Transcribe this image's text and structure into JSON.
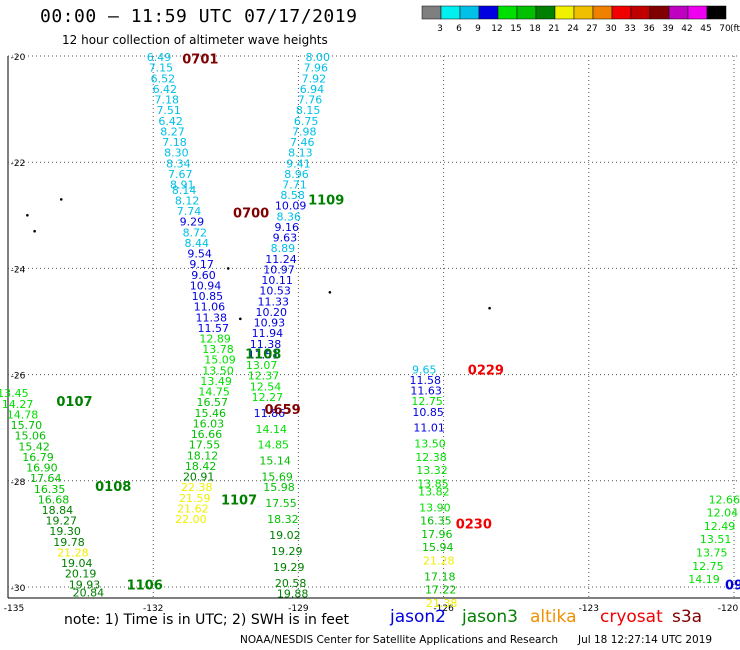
{
  "header": {
    "title": "00:00 – 11:59 UTC 07/17/2019",
    "subtitle": "12 hour collection of altimeter wave heights"
  },
  "legend": {
    "unit": "(ft)",
    "bins": [
      {
        "label": "3",
        "color": "#7f7f7f"
      },
      {
        "label": "6",
        "color": "#00f0f0"
      },
      {
        "label": "9",
        "color": "#00c0e8"
      },
      {
        "label": "12",
        "color": "#0000e0"
      },
      {
        "label": "15",
        "color": "#00e000"
      },
      {
        "label": "18",
        "color": "#00c000"
      },
      {
        "label": "21",
        "color": "#008000"
      },
      {
        "label": "24",
        "color": "#f0f000"
      },
      {
        "label": "27",
        "color": "#f0c000"
      },
      {
        "label": "30",
        "color": "#f08000"
      },
      {
        "label": "33",
        "color": "#f00000"
      },
      {
        "label": "36",
        "color": "#c00000"
      },
      {
        "label": "39",
        "color": "#800000"
      },
      {
        "label": "42",
        "color": "#c000c0"
      },
      {
        "label": "45",
        "color": "#f000f0"
      },
      {
        "label": "70",
        "color": "#000000"
      }
    ]
  },
  "axes": {
    "lat_labels": [
      "-20",
      "-22",
      "-24",
      "-26",
      "-28",
      "-30"
    ],
    "lon_labels": [
      "-135",
      "-132",
      "-129",
      "-126",
      "-123",
      "-120"
    ]
  },
  "passes": [
    {
      "time": "0701",
      "color": "#800000",
      "lon": -131.4,
      "lat": -20.05
    },
    {
      "time": "0700",
      "color": "#800000",
      "lon": -130.35,
      "lat": -22.95
    },
    {
      "time": "1109",
      "color": "#008000",
      "lon": -128.8,
      "lat": -22.7
    },
    {
      "time": "1108",
      "color": "#008000",
      "lon": -130.1,
      "lat": -25.6
    },
    {
      "time": "0659",
      "color": "#800000",
      "lon": -129.7,
      "lat": -26.65
    },
    {
      "time": "0107",
      "color": "#008000",
      "lon": -134.0,
      "lat": -26.5
    },
    {
      "time": "0108",
      "color": "#008000",
      "lon": -133.2,
      "lat": -28.1
    },
    {
      "time": "1107",
      "color": "#008000",
      "lon": -130.6,
      "lat": -28.35
    },
    {
      "time": "1106",
      "color": "#008000",
      "lon": -132.55,
      "lat": -29.95
    },
    {
      "time": "0229",
      "color": "#f00000",
      "lon": -125.5,
      "lat": -25.9
    },
    {
      "time": "0230",
      "color": "#f00000",
      "lon": -125.75,
      "lat": -28.8
    },
    {
      "time": "09",
      "color": "#0000e0",
      "lon": -120.15,
      "lat": -29.95
    }
  ],
  "tracks": [
    {
      "name": "track-a",
      "points": [
        [
          "6.49",
          "#00c0e8",
          -131.88,
          -20.02
        ],
        [
          "7.15",
          "#00c0e8",
          -131.84,
          -20.22
        ],
        [
          "6.52",
          "#00c0e8",
          -131.8,
          -20.42
        ],
        [
          "6.42",
          "#00c0e8",
          -131.76,
          -20.62
        ],
        [
          "7.18",
          "#00c0e8",
          -131.72,
          -20.82
        ],
        [
          "7.51",
          "#00c0e8",
          -131.68,
          -21.02
        ],
        [
          "6.42",
          "#00c0e8",
          -131.64,
          -21.22
        ],
        [
          "8.27",
          "#00c0e8",
          -131.6,
          -21.42
        ],
        [
          "7.18",
          "#00c0e8",
          -131.56,
          -21.62
        ],
        [
          "8.30",
          "#00c0e8",
          -131.52,
          -21.82
        ],
        [
          "8.34",
          "#00c0e8",
          -131.48,
          -22.02
        ],
        [
          "7.67",
          "#00c0e8",
          -131.44,
          -22.22
        ],
        [
          "8.91",
          "#00c0e8",
          -131.4,
          -22.42
        ],
        [
          "8.14",
          "#00c0e8",
          -131.36,
          -22.52
        ],
        [
          "8.12",
          "#00c0e8",
          -131.3,
          -22.72
        ],
        [
          "7.74",
          "#00c0e8",
          -131.26,
          -22.92
        ],
        [
          "9.29",
          "#0000e0",
          -131.2,
          -23.12
        ],
        [
          "8.72",
          "#00c0e8",
          -131.14,
          -23.32
        ],
        [
          "8.44",
          "#00c0e8",
          -131.1,
          -23.52
        ],
        [
          "9.54",
          "#0000e0",
          -131.04,
          -23.72
        ],
        [
          "9.17",
          "#0000e0",
          -131.0,
          -23.92
        ],
        [
          "9.60",
          "#0000e0",
          -130.96,
          -24.12
        ],
        [
          "10.94",
          "#0000e0",
          -130.92,
          -24.32
        ],
        [
          "10.85",
          "#0000e0",
          -130.88,
          -24.52
        ],
        [
          "11.06",
          "#0000e0",
          -130.84,
          -24.72
        ],
        [
          "11.38",
          "#0000e0",
          -130.8,
          -24.92
        ],
        [
          "11.57",
          "#0000e0",
          -130.76,
          -25.12
        ],
        [
          "12.89",
          "#00e000",
          -130.72,
          -25.32
        ],
        [
          "13.78",
          "#00e000",
          -130.66,
          -25.52
        ],
        [
          "15.09",
          "#00e000",
          -130.62,
          -25.72
        ],
        [
          "13.50",
          "#00e000",
          -130.66,
          -25.92
        ],
        [
          "13.49",
          "#00e000",
          -130.7,
          -26.12
        ],
        [
          "14.75",
          "#00e000",
          -130.74,
          -26.32
        ],
        [
          "16.57",
          "#00c000",
          -130.78,
          -26.52
        ],
        [
          "15.46",
          "#00c000",
          -130.82,
          -26.72
        ],
        [
          "16.03",
          "#00c000",
          -130.86,
          -26.92
        ],
        [
          "16.66",
          "#00c000",
          -130.9,
          -27.12
        ],
        [
          "17.55",
          "#00c000",
          -130.94,
          -27.32
        ],
        [
          "18.12",
          "#00c000",
          -130.98,
          -27.52
        ],
        [
          "18.42",
          "#00c000",
          -131.02,
          -27.72
        ],
        [
          "20.91",
          "#008000",
          -131.06,
          -27.92
        ],
        [
          "22.38",
          "#f0f000",
          -131.1,
          -28.12
        ],
        [
          "21.59",
          "#f0f000",
          -131.14,
          -28.32
        ],
        [
          "21.62",
          "#f0f000",
          -131.18,
          -28.52
        ],
        [
          "22.00",
          "#f0f000",
          -131.22,
          -28.72
        ]
      ]
    },
    {
      "name": "track-b",
      "points": [
        [
          "8.00",
          "#00c0e8",
          -128.6,
          -20.02
        ],
        [
          "7.96",
          "#00c0e8",
          -128.64,
          -20.22
        ],
        [
          "7.92",
          "#00c0e8",
          -128.68,
          -20.42
        ],
        [
          "6.94",
          "#00c0e8",
          -128.72,
          -20.62
        ],
        [
          "7.76",
          "#00c0e8",
          -128.76,
          -20.82
        ],
        [
          "8.15",
          "#00c0e8",
          -128.8,
          -21.02
        ],
        [
          "6.75",
          "#00c0e8",
          -128.84,
          -21.22
        ],
        [
          "7.98",
          "#00c0e8",
          -128.88,
          -21.42
        ],
        [
          "7.46",
          "#00c0e8",
          -128.92,
          -21.62
        ],
        [
          "8.13",
          "#00c0e8",
          -128.96,
          -21.82
        ],
        [
          "9.41",
          "#00c0e8",
          -129.0,
          -22.02
        ],
        [
          "8.96",
          "#00c0e8",
          -129.04,
          -22.22
        ],
        [
          "7.71",
          "#00c0e8",
          -129.08,
          -22.42
        ],
        [
          "8.58",
          "#00c0e8",
          -129.12,
          -22.62
        ],
        [
          "10.09",
          "#0000e0",
          -129.16,
          -22.82
        ],
        [
          "8.36",
          "#00c0e8",
          -129.2,
          -23.02
        ],
        [
          "9.16",
          "#0000e0",
          -129.24,
          -23.22
        ],
        [
          "9.63",
          "#0000e0",
          -129.28,
          -23.42
        ],
        [
          "8.89",
          "#00c0e8",
          -129.32,
          -23.62
        ],
        [
          "11.24",
          "#0000e0",
          -129.36,
          -23.82
        ],
        [
          "10.97",
          "#0000e0",
          -129.4,
          -24.02
        ],
        [
          "10.11",
          "#0000e0",
          -129.44,
          -24.22
        ],
        [
          "10.53",
          "#0000e0",
          -129.48,
          -24.42
        ],
        [
          "11.33",
          "#0000e0",
          -129.52,
          -24.62
        ],
        [
          "10.20",
          "#0000e0",
          -129.56,
          -24.82
        ],
        [
          "10.93",
          "#0000e0",
          -129.6,
          -25.02
        ],
        [
          "11.94",
          "#0000e0",
          -129.64,
          -25.22
        ],
        [
          "11.38",
          "#0000e0",
          -129.68,
          -25.42
        ],
        [
          "11.51",
          "#0000e0",
          -129.72,
          -25.62
        ],
        [
          "13.07",
          "#00e000",
          -129.76,
          -25.82
        ],
        [
          "12.37",
          "#00e000",
          -129.72,
          -26.02
        ],
        [
          "12.54",
          "#00e000",
          -129.68,
          -26.22
        ],
        [
          "12.27",
          "#00e000",
          -129.64,
          -26.42
        ],
        [
          "11.86",
          "#0000e0",
          -129.6,
          -26.72
        ],
        [
          "14.14",
          "#00e000",
          -129.56,
          -27.02
        ],
        [
          "14.85",
          "#00e000",
          -129.52,
          -27.32
        ],
        [
          "15.14",
          "#00c000",
          -129.48,
          -27.62
        ],
        [
          "15.69",
          "#00c000",
          -129.44,
          -27.92
        ],
        [
          "15.98",
          "#00c000",
          -129.4,
          -28.12
        ],
        [
          "17.55",
          "#00c000",
          -129.36,
          -28.42
        ],
        [
          "18.32",
          "#00c000",
          -129.32,
          -28.72
        ],
        [
          "19.02",
          "#008000",
          -129.28,
          -29.02
        ],
        [
          "19.29",
          "#008000",
          -129.24,
          -29.32
        ],
        [
          "19.29",
          "#008000",
          -129.2,
          -29.62
        ],
        [
          "20.58",
          "#008000",
          -129.16,
          -29.92
        ],
        [
          "19.88",
          "#008000",
          -129.12,
          -30.12
        ]
      ]
    },
    {
      "name": "track-c",
      "points": [
        [
          "13.45",
          "#00e000",
          -134.9,
          -26.35
        ],
        [
          "14.27",
          "#00e000",
          -134.8,
          -26.55
        ],
        [
          "14.78",
          "#00e000",
          -134.7,
          -26.75
        ],
        [
          "15.70",
          "#00c000",
          -134.62,
          -26.95
        ],
        [
          "15.06",
          "#00c000",
          -134.54,
          -27.15
        ],
        [
          "15.42",
          "#00c000",
          -134.46,
          -27.35
        ],
        [
          "16.79",
          "#00c000",
          -134.38,
          -27.55
        ],
        [
          "16.90",
          "#00c000",
          -134.3,
          -27.75
        ],
        [
          "17.64",
          "#00c000",
          -134.22,
          -27.95
        ],
        [
          "16.35",
          "#00c000",
          -134.14,
          -28.15
        ],
        [
          "16.68",
          "#00c000",
          -134.06,
          -28.35
        ],
        [
          "18.84",
          "#008000",
          -133.98,
          -28.55
        ],
        [
          "19.27",
          "#008000",
          -133.9,
          -28.75
        ],
        [
          "19.30",
          "#008000",
          -133.82,
          -28.95
        ],
        [
          "19.78",
          "#008000",
          -133.74,
          -29.15
        ],
        [
          "21.28",
          "#f0f000",
          -133.66,
          -29.35
        ],
        [
          "19.04",
          "#008000",
          -133.58,
          -29.55
        ],
        [
          "20.19",
          "#008000",
          -133.5,
          -29.75
        ],
        [
          "19.93",
          "#008000",
          -133.42,
          -29.95
        ],
        [
          "20.84",
          "#008000",
          -133.34,
          -30.1
        ]
      ]
    },
    {
      "name": "track-d",
      "points": [
        [
          "9.65",
          "#00c0e8",
          -126.4,
          -25.9
        ],
        [
          "11.58",
          "#0000e0",
          -126.38,
          -26.1
        ],
        [
          "11.63",
          "#0000e0",
          -126.36,
          -26.3
        ],
        [
          "12.75",
          "#00e000",
          -126.34,
          -26.5
        ],
        [
          "10.85",
          "#0000e0",
          -126.32,
          -26.7
        ],
        [
          "11.01",
          "#0000e0",
          -126.3,
          -27.0
        ],
        [
          "13.50",
          "#00e000",
          -126.28,
          -27.3
        ],
        [
          "12.38",
          "#00e000",
          -126.26,
          -27.55
        ],
        [
          "13.32",
          "#00e000",
          -126.24,
          -27.8
        ],
        [
          "13.85",
          "#00e000",
          -126.22,
          -28.05
        ],
        [
          "13.82",
          "#00e000",
          -126.2,
          -28.2
        ],
        [
          "13.90",
          "#00e000",
          -126.18,
          -28.5
        ],
        [
          "16.35",
          "#00c000",
          -126.16,
          -28.75
        ],
        [
          "17.96",
          "#00c000",
          -126.14,
          -29.0
        ],
        [
          "15.94",
          "#00c000",
          -126.12,
          -29.25
        ],
        [
          "21.28",
          "#f0f000",
          -126.1,
          -29.5
        ],
        [
          "17.18",
          "#00c000",
          -126.08,
          -29.8
        ],
        [
          "17.22",
          "#00c000",
          -126.06,
          -30.05
        ],
        [
          "21.38",
          "#f0f000",
          -126.04,
          -30.3
        ]
      ]
    },
    {
      "name": "track-e",
      "points": [
        [
          "12.66",
          "#00e000",
          -120.2,
          -28.35
        ],
        [
          "12.04",
          "#00e000",
          -120.24,
          -28.6
        ],
        [
          "12.49",
          "#00e000",
          -120.3,
          -28.85
        ],
        [
          "13.51",
          "#00e000",
          -120.38,
          -29.1
        ],
        [
          "13.75",
          "#00e000",
          -120.46,
          -29.35
        ],
        [
          "12.75",
          "#00e000",
          -120.54,
          -29.6
        ],
        [
          "14.19",
          "#00e000",
          -120.62,
          -29.85
        ]
      ]
    }
  ],
  "footer": {
    "note": "note:  1) Time is in UTC;  2) SWH is in feet",
    "satellites": [
      {
        "label": "jason2",
        "color": "#0000e0"
      },
      {
        "label": "jason3",
        "color": "#008000"
      },
      {
        "label": "altika",
        "color": "#f09000"
      },
      {
        "label": "cryosat",
        "color": "#f00000"
      },
      {
        "label": "s3a",
        "color": "#800000"
      }
    ],
    "credit": "NOAA/NESDIS Center for Satellite Applications and Research",
    "timestamp": "Jul 18 12:27:14 UTC 2019"
  }
}
